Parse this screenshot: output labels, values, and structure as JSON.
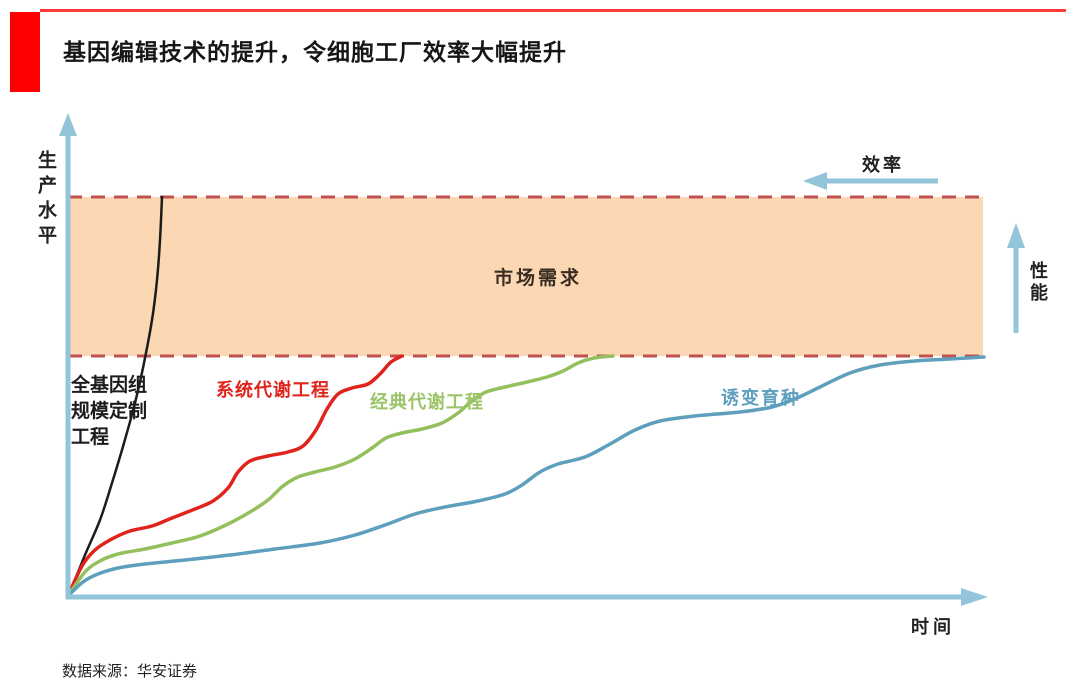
{
  "header": {
    "title": "基因编辑技术的提升，令细胞工厂效率大幅提升",
    "accent_block_color": "#fe0000",
    "rule_color": "#ff3b3b"
  },
  "footer": {
    "source": "数据来源：华安证券"
  },
  "chart_data": {
    "type": "line",
    "title": "基因编辑技术的提升，令细胞工厂效率大幅提升",
    "xlabel": "时间",
    "ylabel": "生产水平",
    "legend_position": "inline-labels",
    "grid": false,
    "coordinate_space": "page-pixels-1080x699, origin of axes at (68,597), larger y-pixel = lower production level",
    "annotations": {
      "band_label": "市场需求",
      "efficiency_arrow_label": "效率",
      "efficiency_arrow_direction": "left",
      "performance_arrow_label": "性能",
      "performance_arrow_direction": "up"
    },
    "axis_color": "#92c5d9",
    "band": {
      "x1": 68,
      "x2": 983,
      "y_top": 197,
      "y_bottom": 356,
      "fill": "#fbd8b3",
      "border": "#c0504d",
      "border_style": "dashed"
    },
    "series": [
      {
        "name": "全基因组规模定制工程",
        "color": "#1c1c1c",
        "width": 2.5,
        "points": [
          [
            68,
            597
          ],
          [
            85,
            555
          ],
          [
            100,
            520
          ],
          [
            112,
            483
          ],
          [
            124,
            443
          ],
          [
            135,
            403
          ],
          [
            144,
            363
          ],
          [
            152,
            320
          ],
          [
            157,
            280
          ],
          [
            160,
            240
          ],
          [
            162,
            197
          ]
        ]
      },
      {
        "name": "系统代谢工程",
        "color": "#e0241c",
        "width": 3.5,
        "points": [
          [
            68,
            596
          ],
          [
            82,
            566
          ],
          [
            95,
            550
          ],
          [
            110,
            540
          ],
          [
            130,
            531
          ],
          [
            152,
            526
          ],
          [
            172,
            518
          ],
          [
            195,
            509
          ],
          [
            213,
            501
          ],
          [
            228,
            488
          ],
          [
            238,
            472
          ],
          [
            250,
            461
          ],
          [
            268,
            456
          ],
          [
            288,
            452
          ],
          [
            303,
            446
          ],
          [
            316,
            430
          ],
          [
            327,
            409
          ],
          [
            338,
            394
          ],
          [
            352,
            388
          ],
          [
            368,
            384
          ],
          [
            380,
            374
          ],
          [
            391,
            362
          ],
          [
            402,
            356
          ]
        ]
      },
      {
        "name": "经典代谢工程",
        "color": "#93c05c",
        "width": 3.5,
        "points": [
          [
            68,
            596
          ],
          [
            85,
            572
          ],
          [
            100,
            561
          ],
          [
            118,
            554
          ],
          [
            145,
            549
          ],
          [
            172,
            543
          ],
          [
            200,
            536
          ],
          [
            228,
            524
          ],
          [
            250,
            512
          ],
          [
            268,
            500
          ],
          [
            283,
            486
          ],
          [
            298,
            477
          ],
          [
            315,
            472
          ],
          [
            335,
            467
          ],
          [
            355,
            459
          ],
          [
            372,
            448
          ],
          [
            386,
            438
          ],
          [
            402,
            433
          ],
          [
            422,
            429
          ],
          [
            442,
            423
          ],
          [
            458,
            413
          ],
          [
            472,
            401
          ],
          [
            486,
            392
          ],
          [
            505,
            387
          ],
          [
            527,
            382
          ],
          [
            547,
            377
          ],
          [
            563,
            371
          ],
          [
            578,
            363
          ],
          [
            594,
            358
          ],
          [
            613,
            356
          ]
        ]
      },
      {
        "name": "诱变育种",
        "color": "#5d9fbc",
        "width": 3.5,
        "points": [
          [
            68,
            596
          ],
          [
            83,
            582
          ],
          [
            98,
            574
          ],
          [
            118,
            568
          ],
          [
            145,
            564
          ],
          [
            185,
            560
          ],
          [
            230,
            555
          ],
          [
            275,
            549
          ],
          [
            320,
            543
          ],
          [
            355,
            535
          ],
          [
            385,
            525
          ],
          [
            415,
            514
          ],
          [
            445,
            507
          ],
          [
            478,
            501
          ],
          [
            505,
            494
          ],
          [
            522,
            485
          ],
          [
            540,
            472
          ],
          [
            558,
            464
          ],
          [
            585,
            457
          ],
          [
            610,
            444
          ],
          [
            635,
            430
          ],
          [
            660,
            421
          ],
          [
            695,
            416
          ],
          [
            740,
            412
          ],
          [
            772,
            407
          ],
          [
            797,
            398
          ],
          [
            820,
            387
          ],
          [
            850,
            373
          ],
          [
            880,
            365
          ],
          [
            915,
            361
          ],
          [
            950,
            359
          ],
          [
            984,
            357
          ]
        ]
      }
    ]
  }
}
